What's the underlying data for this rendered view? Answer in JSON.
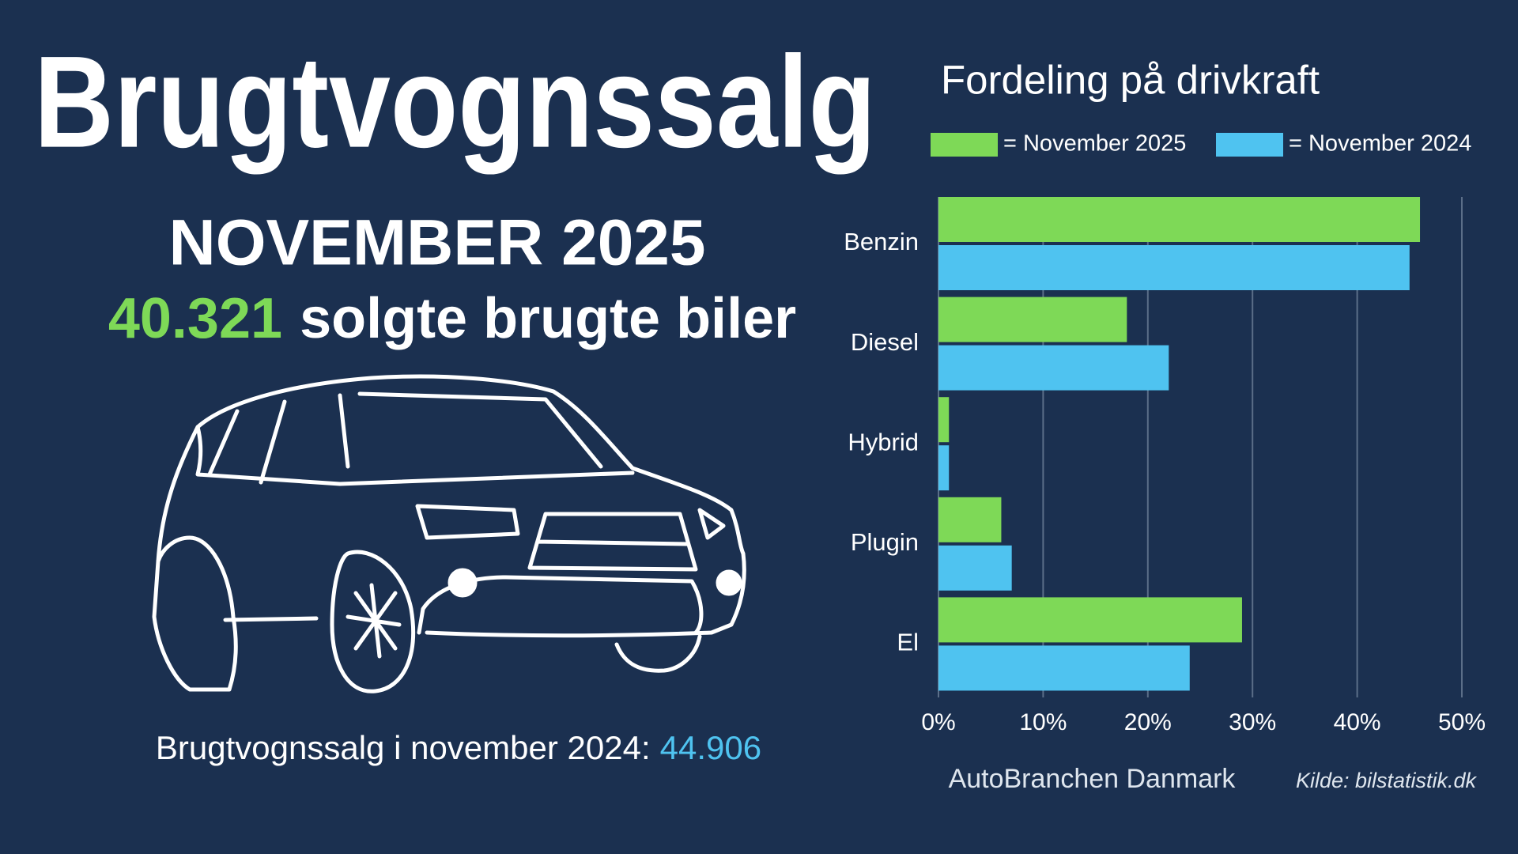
{
  "header": {
    "title": "Brugtvognssalg",
    "subtitle": "NOVEMBER 2025",
    "count": "40.321",
    "count_text": "solgte brugte biler",
    "comparison_text": "Brugtvognssalg i november 2024:",
    "comparison_value": "44.906"
  },
  "footer": {
    "brand": "AutoBranchen Danmark",
    "source": "Kilde: bilstatistik.dk"
  },
  "chart_data": {
    "type": "bar",
    "orientation": "horizontal",
    "title": "Fordeling på drivkraft",
    "categories": [
      "Benzin",
      "Diesel",
      "Hybrid",
      "Plugin",
      "El"
    ],
    "series": [
      {
        "name": "= November 2025",
        "color": "#7ed957",
        "values": [
          46,
          18,
          1,
          6,
          29
        ]
      },
      {
        "name": "= November 2024",
        "color": "#4fc3f0",
        "values": [
          45,
          22,
          1,
          7,
          24
        ]
      }
    ],
    "xlim": [
      0,
      50
    ],
    "xticks": [
      {
        "value": 0,
        "label": "0%"
      },
      {
        "value": 10,
        "label": "10%"
      },
      {
        "value": 20,
        "label": "20%"
      },
      {
        "value": 30,
        "label": "30%"
      },
      {
        "value": 40,
        "label": "40%"
      },
      {
        "value": 50,
        "label": "50%"
      }
    ],
    "grid": true
  }
}
